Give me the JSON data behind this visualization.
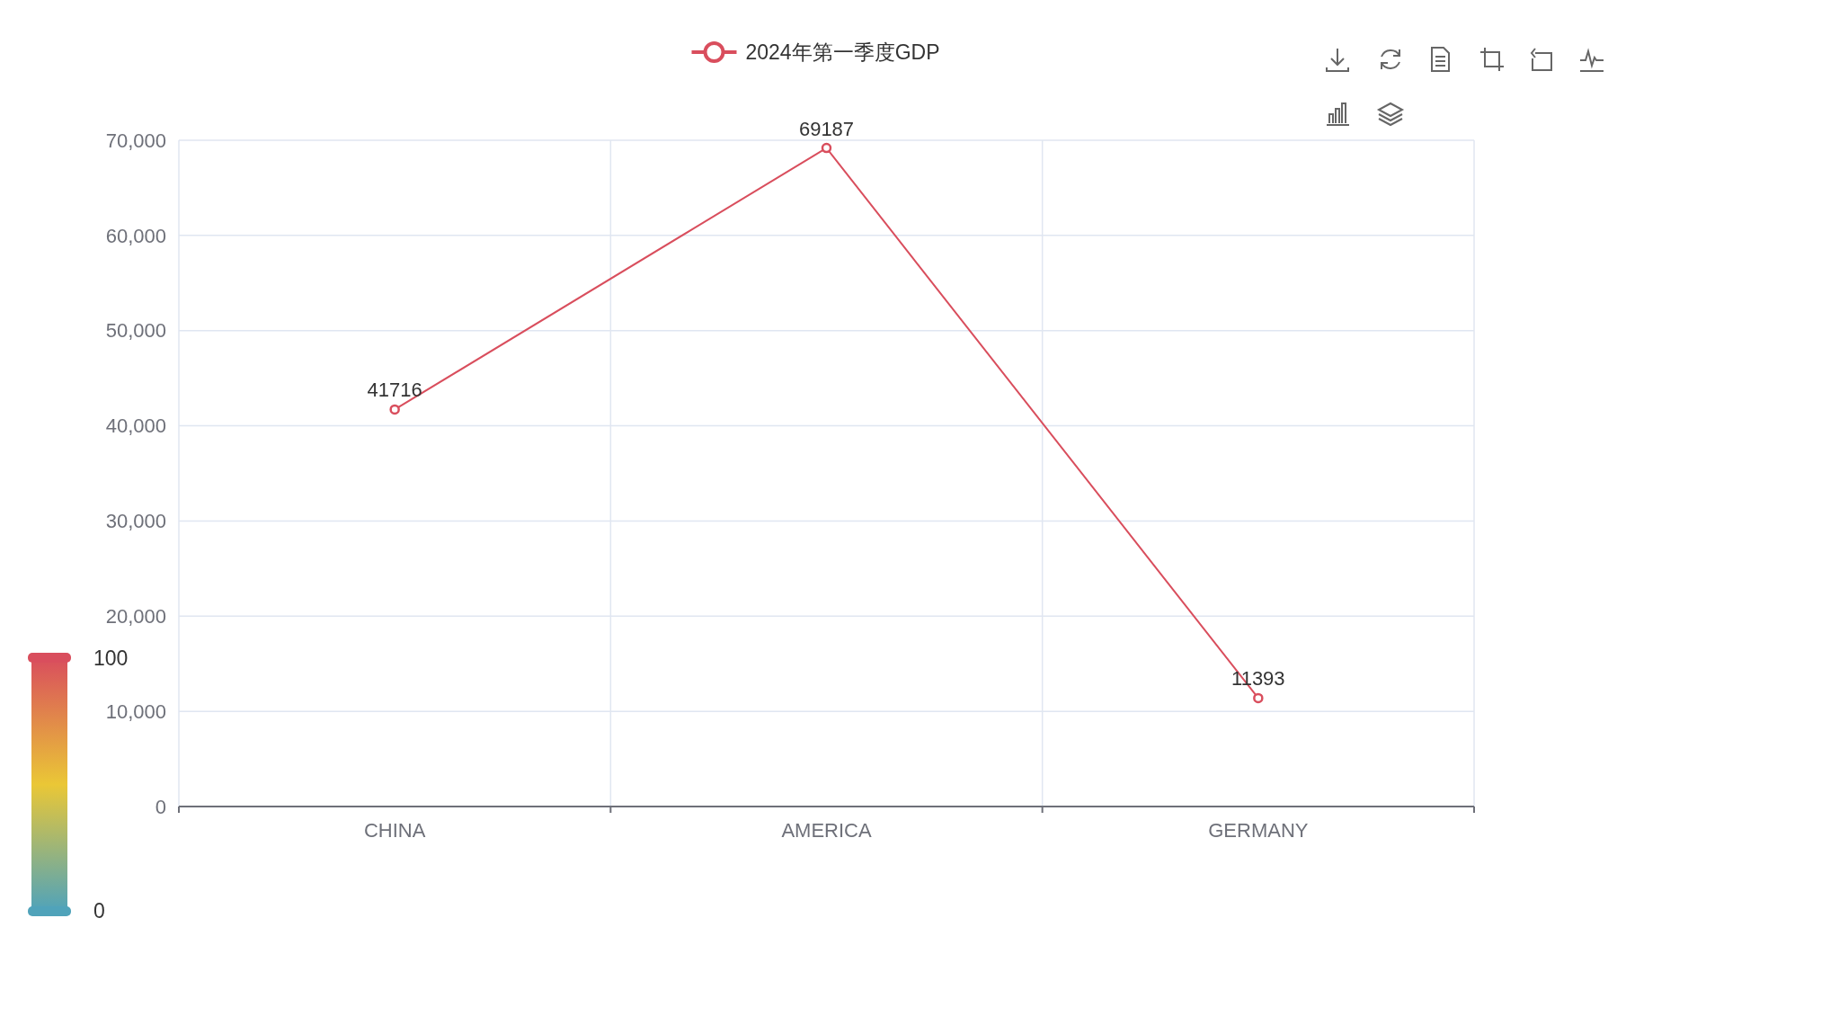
{
  "chart_data": {
    "type": "line",
    "categories": [
      "CHINA",
      "AMERICA",
      "GERMANY"
    ],
    "series": [
      {
        "name": "2024年第一季度GDP",
        "color": "#d94e5d",
        "values": [
          41716,
          69187,
          11393
        ]
      }
    ],
    "ylim": [
      0,
      70000
    ],
    "yticks": [
      {
        "value": 0,
        "label": "0"
      },
      {
        "value": 10000,
        "label": "10,000"
      },
      {
        "value": 20000,
        "label": "20,000"
      },
      {
        "value": 30000,
        "label": "30,000"
      },
      {
        "value": 40000,
        "label": "40,000"
      },
      {
        "value": 50000,
        "label": "50,000"
      },
      {
        "value": 60000,
        "label": "60,000"
      },
      {
        "value": 70000,
        "label": "70,000"
      }
    ],
    "clim": [
      0,
      100
    ],
    "cticks": [
      0,
      100
    ],
    "grid": true,
    "legend": "top",
    "marker": "circle",
    "line_style": "solid",
    "data_labels": true
  }
}
